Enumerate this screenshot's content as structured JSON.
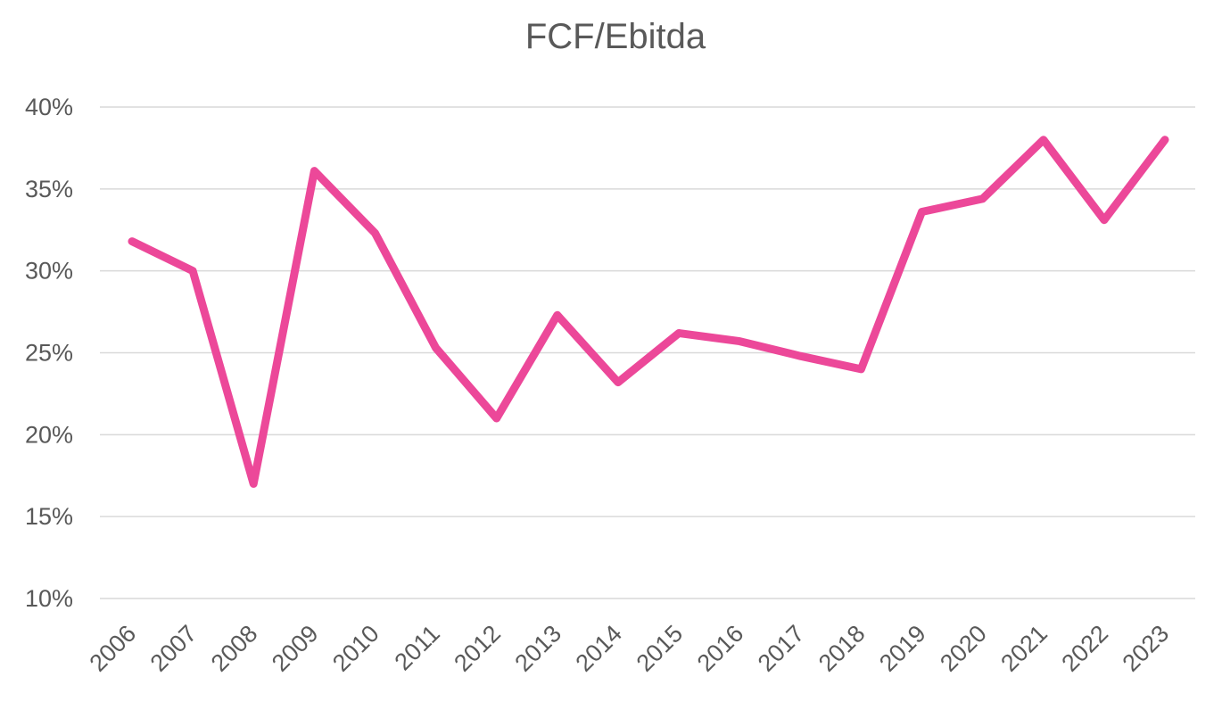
{
  "chart_data": {
    "type": "line",
    "title": "FCF/Ebitda",
    "xlabel": "",
    "ylabel": "",
    "categories": [
      "2006",
      "2007",
      "2008",
      "2009",
      "2010",
      "2011",
      "2012",
      "2013",
      "2014",
      "2015",
      "2016",
      "2017",
      "2018",
      "2019",
      "2020",
      "2021",
      "2022",
      "2023"
    ],
    "series": [
      {
        "color": "#ec4899",
        "values": [
          31.8,
          30.0,
          17.0,
          36.1,
          32.3,
          25.3,
          21.0,
          27.3,
          23.2,
          26.2,
          25.7,
          24.8,
          24.0,
          33.6,
          34.4,
          38.0,
          33.1,
          38.0
        ]
      }
    ],
    "ylim": [
      10,
      40
    ],
    "yticks": [
      10,
      15,
      20,
      25,
      30,
      35,
      40
    ],
    "ytick_labels": [
      "10%",
      "15%",
      "20%",
      "25%",
      "30%",
      "35%",
      "40%"
    ],
    "grid": true,
    "legend": "none"
  }
}
